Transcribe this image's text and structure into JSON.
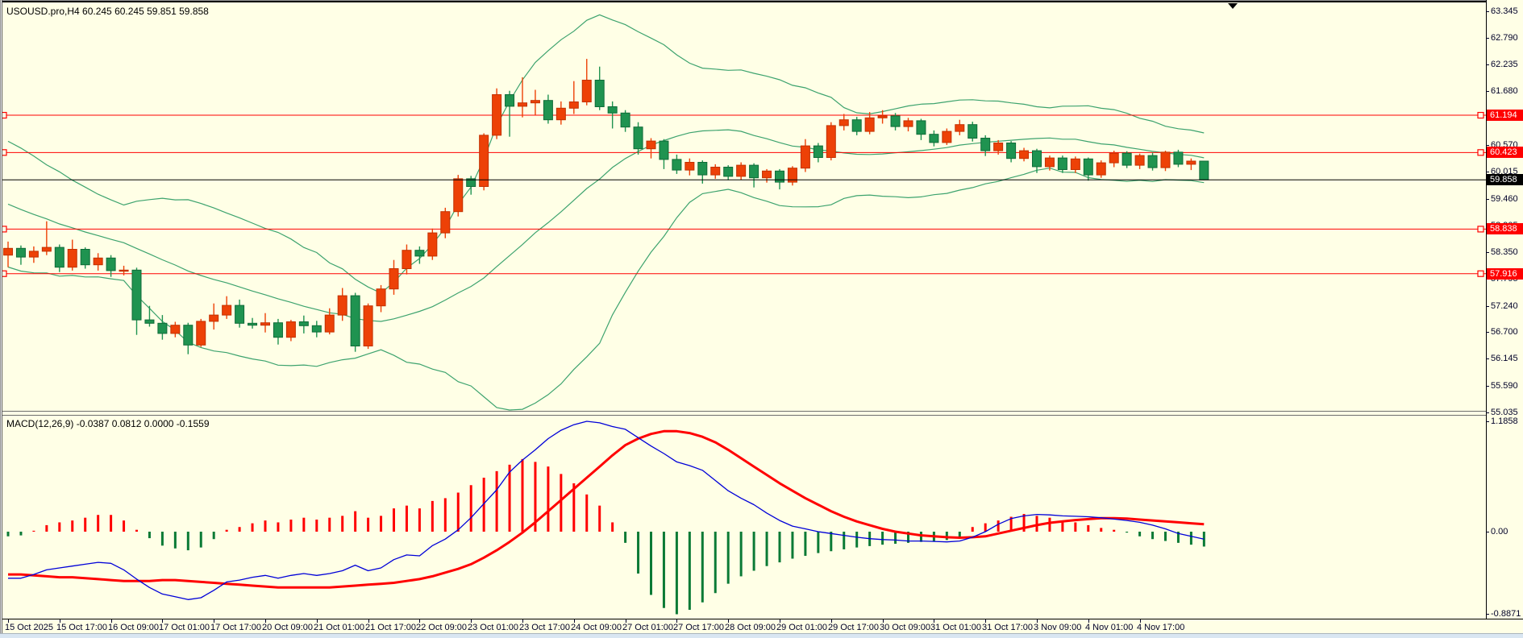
{
  "header": {
    "title_line": "USOUSD.pro,H4  60.245 60.245 59.851 59.858",
    "symbol": "USOUSD.pro",
    "timeframe": "H4",
    "ohlc": {
      "open": "60.245",
      "high": "60.245",
      "low": "59.851",
      "close": "59.858"
    }
  },
  "macd_panel": {
    "label": "MACD(12,26,9) -0.0387 0.0812 0.0000 -0.1559",
    "scale_max_label": "1.1858",
    "scale_zero_label": "0.00",
    "scale_min_label": "-0.8871"
  },
  "colors": {
    "background": "#FFFFE6",
    "bull_candle": "#ED4107",
    "bull_candle_border": "#C23100",
    "bear_candle": "#1F9350",
    "bear_candle_border": "#0F6B38",
    "bollinger_line": "#3DA36E",
    "hline_red": "#FF0000",
    "bid_line_black": "#000000",
    "macd_line_blue": "#0000D8",
    "signal_line_red": "#FF0000",
    "hist_positive": "#FF0000",
    "hist_negative": "#0A7A35",
    "badge_red": "#FF0000",
    "badge_black": "#000000",
    "axis_text": "#000028"
  },
  "price_axis": {
    "ticks": [
      "63.345",
      "62.790",
      "62.235",
      "61.680",
      "61.125",
      "60.570",
      "60.015",
      "59.460",
      "58.905",
      "58.350",
      "57.795",
      "57.240",
      "56.700",
      "56.145",
      "55.590",
      "55.035"
    ],
    "tick_values": [
      63.345,
      62.79,
      62.235,
      61.68,
      61.125,
      60.57,
      60.015,
      59.46,
      58.905,
      58.35,
      57.795,
      57.24,
      56.7,
      56.145,
      55.59,
      55.035
    ],
    "line_badges": [
      "61.194",
      "60.423",
      "58.838",
      "57.916"
    ],
    "bid_badge": "59.858"
  },
  "time_axis": {
    "labels": [
      "15 Oct 2025",
      "15 Oct 17:00",
      "16 Oct 09:00",
      "17 Oct 01:00",
      "17 Oct 17:00",
      "20 Oct 09:00",
      "21 Oct 01:00",
      "21 Oct 17:00",
      "22 Oct 09:00",
      "23 Oct 01:00",
      "23 Oct 17:00",
      "24 Oct 09:00",
      "27 Oct 01:00",
      "27 Oct 17:00",
      "28 Oct 09:00",
      "29 Oct 01:00",
      "29 Oct 17:00",
      "30 Oct 09:00",
      "31 Oct 01:00",
      "31 Oct 17:00",
      "3 Nov 09:00",
      "4 Nov 01:00",
      "4 Nov 17:00"
    ],
    "candles_per_label": 4
  },
  "chart_data": {
    "type": "candlestick",
    "title": "USOUSD.pro,H4",
    "price_range": [
      55.035,
      63.345
    ],
    "horizontal_lines": [
      61.194,
      60.423,
      58.838,
      57.916
    ],
    "bid_price": 59.858,
    "candles": [
      [
        58.3,
        58.58,
        58.05,
        58.44
      ],
      [
        58.44,
        58.5,
        58.1,
        58.26
      ],
      [
        58.26,
        58.48,
        58.14,
        58.38
      ],
      [
        58.38,
        59.0,
        58.3,
        58.46
      ],
      [
        58.46,
        58.52,
        57.95,
        58.05
      ],
      [
        58.05,
        58.62,
        57.98,
        58.42
      ],
      [
        58.42,
        58.46,
        58.02,
        58.1
      ],
      [
        58.1,
        58.34,
        57.98,
        58.24
      ],
      [
        58.24,
        58.3,
        57.85,
        57.98
      ],
      [
        57.98,
        58.08,
        57.88,
        57.99
      ],
      [
        57.99,
        58.04,
        56.65,
        56.96
      ],
      [
        56.96,
        57.25,
        56.82,
        56.89
      ],
      [
        56.89,
        57.06,
        56.55,
        56.68
      ],
      [
        56.68,
        56.92,
        56.6,
        56.85
      ],
      [
        56.85,
        56.9,
        56.25,
        56.44
      ],
      [
        56.44,
        56.98,
        56.4,
        56.93
      ],
      [
        56.93,
        57.3,
        56.76,
        57.06
      ],
      [
        57.06,
        57.45,
        56.98,
        57.26
      ],
      [
        57.26,
        57.38,
        56.8,
        56.89
      ],
      [
        56.89,
        57.0,
        56.78,
        56.85
      ],
      [
        56.85,
        57.1,
        56.7,
        56.9
      ],
      [
        56.9,
        56.98,
        56.45,
        56.6
      ],
      [
        56.6,
        56.96,
        56.52,
        56.92
      ],
      [
        56.92,
        57.05,
        56.68,
        56.84
      ],
      [
        56.84,
        56.94,
        56.6,
        56.71
      ],
      [
        56.71,
        57.2,
        56.66,
        57.06
      ],
      [
        57.06,
        57.62,
        56.94,
        57.46
      ],
      [
        57.46,
        57.52,
        56.3,
        56.42
      ],
      [
        56.42,
        57.3,
        56.36,
        57.25
      ],
      [
        57.25,
        57.68,
        57.12,
        57.6
      ],
      [
        57.6,
        58.2,
        57.48,
        58.02
      ],
      [
        58.02,
        58.52,
        57.9,
        58.4
      ],
      [
        58.4,
        58.48,
        58.12,
        58.28
      ],
      [
        58.28,
        58.85,
        58.2,
        58.76
      ],
      [
        58.76,
        59.28,
        58.65,
        59.2
      ],
      [
        59.2,
        59.96,
        59.1,
        59.88
      ],
      [
        59.88,
        59.94,
        59.55,
        59.72
      ],
      [
        59.72,
        60.82,
        59.64,
        60.78
      ],
      [
        60.78,
        61.75,
        60.7,
        61.62
      ],
      [
        61.62,
        61.7,
        60.75,
        61.38
      ],
      [
        61.38,
        61.98,
        61.15,
        61.45
      ],
      [
        61.45,
        61.72,
        61.2,
        61.5
      ],
      [
        61.5,
        61.62,
        61.02,
        61.1
      ],
      [
        61.1,
        61.48,
        61.0,
        61.34
      ],
      [
        61.34,
        61.9,
        61.22,
        61.47
      ],
      [
        61.47,
        62.36,
        61.4,
        61.92
      ],
      [
        61.92,
        62.2,
        61.3,
        61.37
      ],
      [
        61.37,
        61.48,
        60.92,
        61.24
      ],
      [
        61.24,
        61.3,
        60.85,
        60.95
      ],
      [
        60.95,
        61.05,
        60.38,
        60.5
      ],
      [
        60.5,
        60.72,
        60.3,
        60.66
      ],
      [
        60.66,
        60.7,
        60.08,
        60.28
      ],
      [
        60.28,
        60.38,
        59.98,
        60.06
      ],
      [
        60.06,
        60.3,
        59.95,
        60.22
      ],
      [
        60.22,
        60.26,
        59.78,
        59.96
      ],
      [
        59.96,
        60.18,
        59.88,
        60.12
      ],
      [
        60.12,
        60.16,
        59.85,
        59.93
      ],
      [
        59.93,
        60.22,
        59.86,
        60.16
      ],
      [
        60.16,
        60.2,
        59.7,
        59.9
      ],
      [
        59.9,
        60.08,
        59.8,
        60.04
      ],
      [
        60.04,
        60.08,
        59.66,
        59.81
      ],
      [
        59.81,
        60.14,
        59.74,
        60.1
      ],
      [
        60.1,
        60.7,
        60.02,
        60.56
      ],
      [
        60.56,
        60.62,
        60.22,
        60.32
      ],
      [
        60.32,
        61.05,
        60.26,
        60.98
      ],
      [
        60.98,
        61.22,
        60.88,
        61.1
      ],
      [
        61.1,
        61.16,
        60.78,
        60.86
      ],
      [
        60.86,
        61.26,
        60.8,
        61.14
      ],
      [
        61.14,
        61.3,
        61.02,
        61.18
      ],
      [
        61.18,
        61.24,
        60.88,
        60.96
      ],
      [
        60.96,
        61.14,
        60.86,
        61.08
      ],
      [
        61.08,
        61.12,
        60.68,
        60.8
      ],
      [
        60.8,
        60.88,
        60.55,
        60.63
      ],
      [
        60.63,
        60.92,
        60.58,
        60.86
      ],
      [
        60.86,
        61.1,
        60.78,
        61.0
      ],
      [
        61.0,
        61.06,
        60.65,
        60.72
      ],
      [
        60.72,
        60.78,
        60.35,
        60.46
      ],
      [
        60.46,
        60.68,
        60.38,
        60.62
      ],
      [
        60.62,
        60.66,
        60.22,
        60.3
      ],
      [
        60.3,
        60.52,
        60.24,
        60.46
      ],
      [
        60.46,
        60.5,
        60.0,
        60.13
      ],
      [
        60.13,
        60.36,
        60.05,
        60.31
      ],
      [
        60.31,
        60.36,
        60.0,
        60.07
      ],
      [
        60.07,
        60.34,
        60.0,
        60.29
      ],
      [
        60.29,
        60.32,
        59.84,
        59.96
      ],
      [
        59.96,
        60.26,
        59.9,
        60.21
      ],
      [
        60.21,
        60.46,
        60.12,
        60.41
      ],
      [
        60.41,
        60.45,
        60.1,
        60.16
      ],
      [
        60.16,
        60.4,
        60.08,
        60.36
      ],
      [
        60.36,
        60.42,
        60.05,
        60.11
      ],
      [
        60.11,
        60.46,
        60.04,
        60.43
      ],
      [
        60.43,
        60.48,
        60.12,
        60.18
      ],
      [
        60.18,
        60.3,
        60.06,
        60.245
      ],
      [
        60.245,
        60.245,
        59.851,
        59.858
      ]
    ],
    "bollinger": {
      "period": 20,
      "deviation": 2,
      "seed_closes": [
        60.5,
        60.4,
        60.3,
        60.15,
        60.0,
        59.85,
        59.7,
        59.55,
        59.4,
        59.3,
        59.2,
        59.1,
        59.0,
        58.9,
        58.8,
        58.7,
        58.65,
        58.6,
        58.55
      ]
    },
    "macd": {
      "params": "12,26,9",
      "scale_max": 1.1858,
      "scale_min": -0.8871,
      "macd_line": [
        -0.5,
        -0.5,
        -0.46,
        -0.41,
        -0.39,
        -0.37,
        -0.35,
        -0.33,
        -0.34,
        -0.41,
        -0.51,
        -0.6,
        -0.67,
        -0.7,
        -0.73,
        -0.71,
        -0.63,
        -0.54,
        -0.52,
        -0.49,
        -0.47,
        -0.5,
        -0.47,
        -0.45,
        -0.47,
        -0.45,
        -0.42,
        -0.36,
        -0.42,
        -0.39,
        -0.3,
        -0.25,
        -0.26,
        -0.15,
        -0.08,
        0.02,
        0.15,
        0.3,
        0.45,
        0.64,
        0.77,
        0.88,
        1.0,
        1.09,
        1.15,
        1.186,
        1.17,
        1.13,
        1.1,
        1.01,
        0.92,
        0.84,
        0.75,
        0.71,
        0.66,
        0.55,
        0.44,
        0.36,
        0.29,
        0.2,
        0.12,
        0.06,
        0.03,
        0.0,
        -0.02,
        -0.04,
        -0.06,
        -0.075,
        -0.085,
        -0.09,
        -0.1,
        -0.1,
        -0.105,
        -0.11,
        -0.1,
        -0.06,
        0.0,
        0.08,
        0.14,
        0.17,
        0.185,
        0.18,
        0.17,
        0.165,
        0.16,
        0.15,
        0.135,
        0.12,
        0.1,
        0.07,
        0.03,
        -0.02,
        -0.05,
        -0.08
      ],
      "signal_line": [
        -0.46,
        -0.46,
        -0.47,
        -0.48,
        -0.49,
        -0.49,
        -0.5,
        -0.51,
        -0.52,
        -0.53,
        -0.53,
        -0.53,
        -0.52,
        -0.52,
        -0.53,
        -0.54,
        -0.55,
        -0.56,
        -0.57,
        -0.58,
        -0.59,
        -0.6,
        -0.6,
        -0.6,
        -0.6,
        -0.6,
        -0.59,
        -0.58,
        -0.57,
        -0.56,
        -0.55,
        -0.53,
        -0.51,
        -0.48,
        -0.44,
        -0.4,
        -0.35,
        -0.28,
        -0.2,
        -0.11,
        -0.01,
        0.1,
        0.22,
        0.34,
        0.46,
        0.58,
        0.7,
        0.82,
        0.93,
        1.0,
        1.05,
        1.08,
        1.08,
        1.06,
        1.02,
        0.96,
        0.88,
        0.79,
        0.7,
        0.61,
        0.52,
        0.44,
        0.36,
        0.29,
        0.22,
        0.16,
        0.11,
        0.07,
        0.03,
        0.0,
        -0.02,
        -0.04,
        -0.05,
        -0.06,
        -0.065,
        -0.06,
        -0.05,
        -0.02,
        0.01,
        0.04,
        0.07,
        0.095,
        0.11,
        0.125,
        0.135,
        0.145,
        0.145,
        0.14,
        0.13,
        0.12,
        0.11,
        0.1,
        0.09,
        0.08
      ],
      "histogram": [
        -0.05,
        -0.04,
        0.01,
        0.07,
        0.1,
        0.12,
        0.15,
        0.18,
        0.18,
        0.12,
        0.02,
        -0.07,
        -0.15,
        -0.18,
        -0.2,
        -0.17,
        -0.08,
        0.02,
        0.05,
        0.09,
        0.12,
        0.1,
        0.13,
        0.15,
        0.13,
        0.15,
        0.17,
        0.22,
        0.15,
        0.17,
        0.25,
        0.28,
        0.25,
        0.33,
        0.36,
        0.42,
        0.5,
        0.58,
        0.65,
        0.72,
        0.78,
        0.75,
        0.7,
        0.62,
        0.52,
        0.4,
        0.28,
        0.1,
        -0.12,
        -0.45,
        -0.68,
        -0.82,
        -0.887,
        -0.84,
        -0.76,
        -0.66,
        -0.56,
        -0.48,
        -0.42,
        -0.37,
        -0.33,
        -0.29,
        -0.26,
        -0.23,
        -0.21,
        -0.19,
        -0.17,
        -0.155,
        -0.14,
        -0.13,
        -0.12,
        -0.11,
        -0.1,
        -0.09,
        -0.07,
        0.05,
        0.09,
        0.12,
        0.16,
        0.19,
        0.17,
        0.15,
        0.12,
        0.1,
        0.07,
        0.04,
        0.02,
        -0.01,
        -0.05,
        -0.08,
        -0.1,
        -0.12,
        -0.14,
        -0.16
      ]
    }
  }
}
